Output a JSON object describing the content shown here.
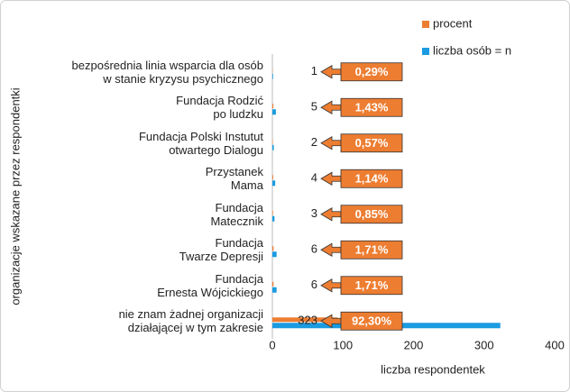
{
  "chart_data": {
    "type": "bar",
    "orientation": "horizontal",
    "ylabel": "organizacje wskazane przez respondentki",
    "xlabel": "liczba respondentek",
    "categories": [
      "bezpośrednia linia wsparcia  dla osób\nw stanie kryzysu psychicznego",
      "Fundacja Rodzić\npo ludzku",
      "Fundacja Polski Instutut\notwartego Dialogu",
      "Przystanek\nMama",
      "Fundacja\nMatecznik",
      "Fundacja\nTwarze Depresji",
      "Fundacja\nErnesta Wójcickiego",
      "nie znam żadnej organizacji\ndziałającej w tym zakresie"
    ],
    "series": [
      {
        "name": "procent",
        "color": "#ed7d31",
        "values": [
          0.29,
          1.43,
          0.57,
          1.14,
          0.85,
          1.71,
          1.71,
          92.3
        ],
        "value_labels": [
          "0,29%",
          "1,43%",
          "0,57%",
          "1,14%",
          "0,85%",
          "1,71%",
          "1,71%",
          "92,30%"
        ]
      },
      {
        "name": "liczba osób = n",
        "color": "#1b9be0",
        "values": [
          1,
          5,
          2,
          4,
          3,
          6,
          6,
          323
        ]
      }
    ],
    "xlim": [
      0,
      400
    ],
    "xticks": [
      0,
      100,
      200,
      300,
      400
    ],
    "grid": false
  }
}
